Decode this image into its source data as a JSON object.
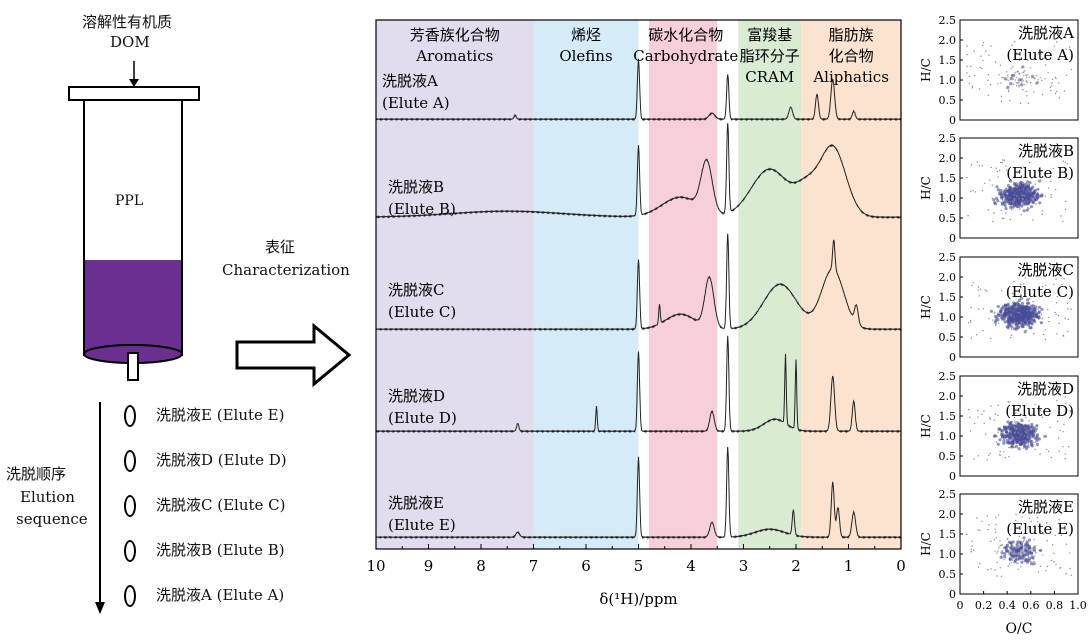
{
  "column": {
    "top_label_cn": "溶解性有机质",
    "top_label_en": "DOM",
    "cartridge_label": "PPL",
    "fill_color": "#6a2f8f"
  },
  "elution": {
    "label_cn": "洗脱顺序",
    "label_en_1": "Elution",
    "label_en_2": "sequence",
    "items": [
      "洗脱液E (Elute E)",
      "洗脱液D (Elute D)",
      "洗脱液C (Elute C)",
      "洗脱液B (Elute B)",
      "洗脱液A (Elute A)"
    ]
  },
  "arrow": {
    "label_cn": "表征",
    "label_en": "Characterization"
  },
  "nmr": {
    "regions": [
      {
        "cn": "芳香族化合物",
        "en": "Aromatics",
        "from": 10,
        "to": 7.0,
        "color": "#e3dcef"
      },
      {
        "cn": "烯烃",
        "en": "Olefins",
        "from": 7.0,
        "to": 5.0,
        "color": "#d5ebf7"
      },
      {
        "cn": "碳水化合物",
        "en": "Carbohydrate",
        "from": 4.8,
        "to": 3.5,
        "color": "#f6cfd8"
      },
      {
        "cn": "富羧基",
        "cn2": "脂环分子",
        "en": "CRAM",
        "from": 3.1,
        "to": 1.9,
        "color": "#d9ebd3"
      },
      {
        "cn": "脂肪族",
        "cn2": "化合物",
        "en": "Aliphatics",
        "from": 1.9,
        "to": 0,
        "color": "#fbe3cf"
      }
    ],
    "traces": [
      {
        "cn": "洗脱液A",
        "en": "(Elute A)"
      },
      {
        "cn": "洗脱液B",
        "en": "(Elute B)"
      },
      {
        "cn": "洗脱液C",
        "en": "(Elute C)"
      },
      {
        "cn": "洗脱液D",
        "en": "(Elute D)"
      },
      {
        "cn": "洗脱液E",
        "en": "(Elute E)"
      }
    ],
    "x_ticks": [
      "10",
      "9",
      "8",
      "7",
      "6",
      "5",
      "4",
      "3",
      "2",
      "1",
      "0"
    ],
    "xlabel": "δ(¹H)/ppm"
  },
  "vk": {
    "ylabel": "H/C",
    "xlabel": "O/C",
    "y_ticks": [
      "2.5",
      "2.0",
      "1.5",
      "1.0",
      "0.5",
      "0"
    ],
    "x_ticks": [
      "0",
      "0.2",
      "0.4",
      "0.6",
      "0.8",
      "1.0"
    ],
    "panels": [
      {
        "cn": "洗脱液A",
        "en": "(Elute A)"
      },
      {
        "cn": "洗脱液B",
        "en": "(Elute B)"
      },
      {
        "cn": "洗脱液C",
        "en": "(Elute C)"
      },
      {
        "cn": "洗脱液D",
        "en": "(Elute D)"
      },
      {
        "cn": "洗脱液E",
        "en": "(Elute E)"
      }
    ],
    "dot_color": "#4a4d99"
  }
}
